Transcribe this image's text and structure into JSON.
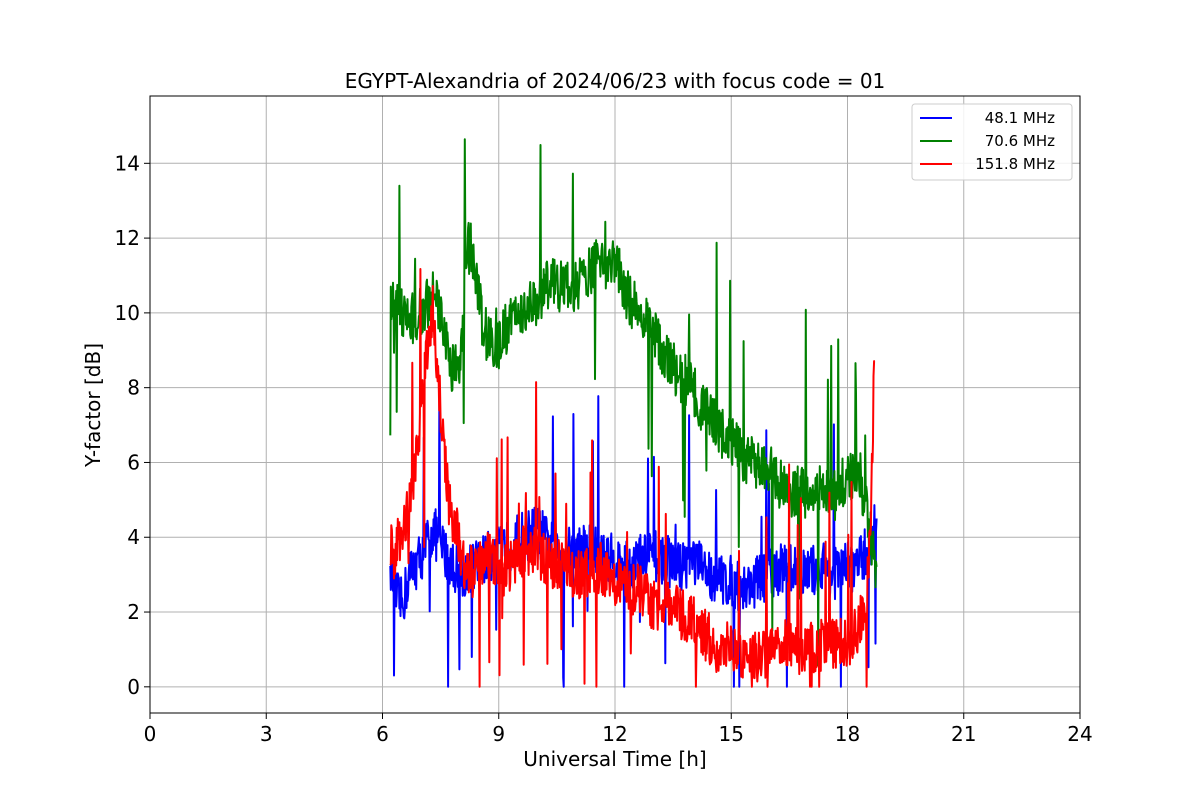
{
  "chart_data": {
    "type": "line",
    "title": "EGYPT-Alexandria of 2024/06/23 with focus code = 01",
    "xlabel": "Universal Time [h]",
    "ylabel": "Y-factor [dB]",
    "xlim": [
      0,
      24
    ],
    "ylim": [
      -0.7,
      15.8
    ],
    "xticks": [
      0,
      3,
      6,
      9,
      12,
      15,
      18,
      21,
      24
    ],
    "yticks": [
      0,
      2,
      4,
      6,
      8,
      10,
      12,
      14
    ],
    "grid": true,
    "legend_position": "top-right",
    "series": [
      {
        "name": "48.1 MHz",
        "color": "#0000ff",
        "x": [
          6.2,
          6.3,
          6.5,
          6.7,
          7.0,
          7.3,
          7.6,
          8.0,
          8.3,
          8.6,
          9.0,
          9.3,
          9.6,
          10.0,
          10.3,
          10.6,
          11.0,
          11.3,
          11.6,
          12.0,
          12.3,
          12.6,
          13.0,
          13.3,
          13.6,
          14.0,
          14.3,
          14.6,
          15.0,
          15.3,
          15.6,
          16.0,
          16.3,
          16.6,
          17.0,
          17.3,
          17.6,
          18.0,
          18.3,
          18.6,
          18.75
        ],
        "y": [
          3.8,
          2.5,
          2.2,
          3.0,
          3.5,
          4.2,
          3.6,
          3.0,
          3.2,
          3.4,
          3.6,
          3.8,
          4.0,
          4.2,
          3.8,
          3.6,
          3.6,
          3.8,
          3.5,
          3.4,
          3.2,
          3.4,
          3.5,
          3.4,
          3.2,
          3.4,
          3.1,
          2.9,
          2.8,
          2.6,
          2.8,
          3.0,
          3.2,
          3.1,
          3.0,
          3.3,
          3.0,
          3.2,
          3.3,
          3.8,
          4.6
        ]
      },
      {
        "name": "70.6 MHz",
        "color": "#008000",
        "x": [
          6.2,
          6.3,
          6.5,
          6.7,
          7.0,
          7.3,
          7.6,
          7.8,
          8.0,
          8.2,
          8.4,
          8.6,
          8.8,
          9.0,
          9.3,
          9.6,
          10.0,
          10.3,
          10.6,
          11.0,
          11.3,
          11.6,
          11.8,
          12.0,
          12.3,
          12.6,
          13.0,
          13.3,
          13.6,
          14.0,
          14.3,
          14.6,
          15.0,
          15.3,
          15.6,
          16.0,
          16.3,
          16.6,
          17.0,
          17.3,
          17.6,
          18.0,
          18.3,
          18.6,
          18.75
        ],
        "y": [
          10.0,
          10.3,
          10.0,
          9.8,
          10.0,
          10.5,
          9.6,
          8.5,
          8.6,
          12.4,
          11.0,
          9.6,
          9.2,
          9.2,
          9.8,
          10.0,
          10.4,
          10.8,
          10.7,
          10.7,
          11.0,
          11.4,
          11.3,
          11.5,
          10.5,
          10.0,
          9.4,
          8.8,
          8.4,
          8.0,
          7.4,
          7.0,
          6.5,
          6.2,
          6.0,
          5.8,
          5.4,
          5.2,
          5.2,
          5.3,
          5.0,
          5.6,
          5.8,
          4.0,
          3.0
        ]
      },
      {
        "name": "151.8 MHz",
        "color": "#ff0000",
        "x": [
          6.2,
          6.3,
          6.5,
          6.7,
          6.9,
          7.1,
          7.3,
          7.5,
          7.7,
          7.9,
          8.1,
          8.4,
          8.7,
          9.0,
          9.3,
          9.6,
          10.0,
          10.3,
          10.6,
          11.0,
          11.3,
          11.6,
          12.0,
          12.3,
          12.6,
          13.0,
          13.3,
          13.6,
          14.0,
          14.3,
          14.6,
          15.0,
          15.3,
          15.6,
          16.0,
          16.3,
          16.6,
          17.0,
          17.3,
          17.6,
          18.0,
          18.3,
          18.5,
          18.6,
          18.7
        ],
        "y": [
          3.8,
          3.5,
          4.2,
          4.8,
          6.2,
          8.5,
          10.2,
          7.5,
          5.0,
          4.2,
          3.2,
          3.0,
          3.6,
          3.0,
          3.2,
          3.6,
          3.6,
          3.4,
          3.2,
          3.0,
          3.0,
          3.2,
          2.8,
          2.6,
          2.6,
          2.2,
          2.2,
          2.0,
          1.8,
          1.4,
          1.1,
          1.0,
          0.8,
          0.8,
          1.0,
          1.2,
          1.0,
          1.0,
          1.1,
          1.2,
          1.2,
          1.6,
          2.4,
          4.8,
          9.0
        ]
      }
    ],
    "annotations_note": ""
  }
}
